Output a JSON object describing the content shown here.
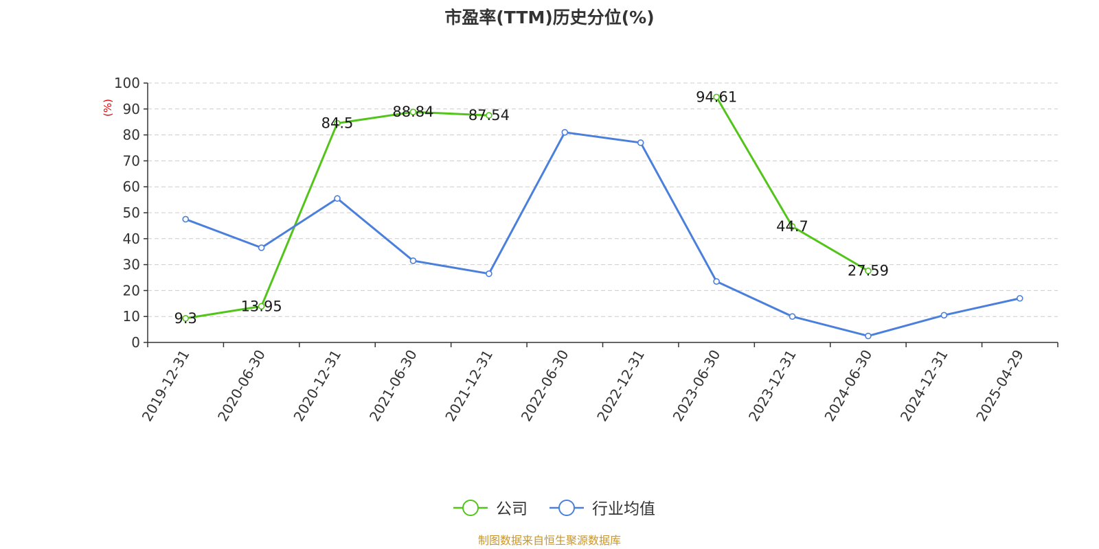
{
  "chart_data": {
    "type": "line",
    "title": "市盈率(TTM)历史分位(%)",
    "ylabel": "(%)",
    "xlabel": "",
    "categories": [
      "2019-12-31",
      "2020-06-30",
      "2020-12-31",
      "2021-06-30",
      "2021-12-31",
      "2022-06-30",
      "2022-12-31",
      "2023-06-30",
      "2023-12-31",
      "2024-06-30",
      "2024-12-31",
      "2025-04-29"
    ],
    "ylim": [
      0,
      100
    ],
    "yticks": [
      0,
      10,
      20,
      30,
      40,
      50,
      60,
      70,
      80,
      90,
      100
    ],
    "grid": true,
    "legend_position": "bottom-center",
    "series": [
      {
        "name": "公司",
        "color": "#52c41a",
        "values": [
          9.3,
          13.95,
          84.5,
          88.84,
          87.54,
          null,
          null,
          94.61,
          44.7,
          27.59,
          null,
          null
        ],
        "labels": [
          "9.3",
          "13.95",
          "84.5",
          "88.84",
          "87.54",
          "",
          "",
          "94.61",
          "44.7",
          "27.59",
          "",
          ""
        ]
      },
      {
        "name": "行业均值",
        "color": "#4a7fdc",
        "values": [
          47.5,
          36.5,
          55.5,
          31.5,
          26.5,
          81,
          77,
          23.5,
          10,
          2.5,
          10.5,
          17
        ],
        "labels": []
      }
    ],
    "source": "制图数据来自恒生聚源数据库"
  }
}
